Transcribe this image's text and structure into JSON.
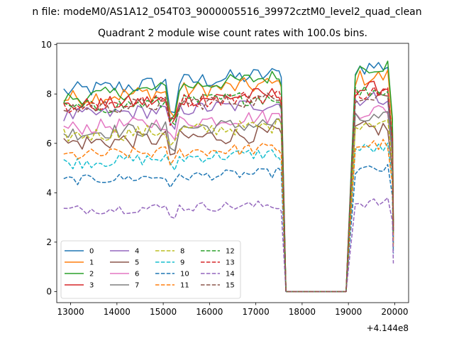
{
  "figure": {
    "suptitle": "n file: modeM0/AS1A12_054T03_9000005516_39972cztM0_level2_quad_clean"
  },
  "chart_data": {
    "type": "line",
    "title": "Quadrant 2 module wise count rates with 100.0s bins.",
    "xlabel": "",
    "ylabel": "",
    "x_offset_label": "+4.144e8",
    "xlim": [
      12700,
      20300
    ],
    "ylim": [
      -0.45,
      10.05
    ],
    "x_ticks": [
      13000,
      14000,
      15000,
      16000,
      17000,
      18000,
      19000,
      20000
    ],
    "y_ticks": [
      0,
      2,
      4,
      6,
      8,
      10
    ],
    "grid": false,
    "legend": {
      "placement": "lower-left",
      "columns": 4
    },
    "profile": {
      "active_segments": [
        [
          12850,
          17450
        ],
        [
          19150,
          19850
        ]
      ],
      "edges": [
        {
          "x": 17500,
          "kind": "level"
        },
        {
          "x": 17550,
          "kind": "frac",
          "f": 0.97
        },
        {
          "x": 17650,
          "kind": "zero"
        },
        {
          "x": 18950,
          "kind": "zero"
        },
        {
          "x": 19050,
          "kind": "frac",
          "f": 0.55
        },
        {
          "x": 19950,
          "kind": "frac",
          "f": 0.75
        },
        {
          "x": 19970,
          "kind": "frac",
          "f": 0.3
        }
      ],
      "step": 100
    },
    "series": [
      {
        "name": "0",
        "color": "#1f77b4",
        "style": "solid",
        "level": 8.1,
        "jitter": 0.35,
        "trend": 0.7,
        "dip": 1.6
      },
      {
        "name": "1",
        "color": "#ff7f0e",
        "style": "solid",
        "level": 7.8,
        "jitter": 0.35,
        "trend": 0.6,
        "dip": 1.4
      },
      {
        "name": "2",
        "color": "#2ca02c",
        "style": "solid",
        "level": 7.8,
        "jitter": 0.3,
        "trend": 0.9,
        "dip": 1.7
      },
      {
        "name": "3",
        "color": "#d62728",
        "style": "solid",
        "level": 7.5,
        "jitter": 0.3,
        "trend": 0.5,
        "dip": 1.3
      },
      {
        "name": "4",
        "color": "#9467bd",
        "style": "solid",
        "level": 7.1,
        "jitter": 0.3,
        "trend": 0.5,
        "dip": 1.2
      },
      {
        "name": "5",
        "color": "#8c564b",
        "style": "solid",
        "level": 6.0,
        "jitter": 0.35,
        "trend": 0.4,
        "dip": 0.9
      },
      {
        "name": "6",
        "color": "#e377c2",
        "style": "solid",
        "level": 6.6,
        "jitter": 0.3,
        "trend": 0.5,
        "dip": 1.0
      },
      {
        "name": "7",
        "color": "#7f7f7f",
        "style": "solid",
        "level": 6.4,
        "jitter": 0.3,
        "trend": 0.4,
        "dip": 1.0
      },
      {
        "name": "8",
        "color": "#bcbd22",
        "style": "dashed",
        "level": 6.3,
        "jitter": 0.3,
        "trend": 0.4,
        "dip": 0.8
      },
      {
        "name": "9",
        "color": "#17becf",
        "style": "dashed",
        "level": 5.2,
        "jitter": 0.25,
        "trend": 0.4,
        "dip": 0.6
      },
      {
        "name": "10",
        "color": "#1f77b4",
        "style": "dashed",
        "level": 4.5,
        "jitter": 0.2,
        "trend": 0.3,
        "dip": 0.5
      },
      {
        "name": "11",
        "color": "#ff7f0e",
        "style": "dashed",
        "level": 5.5,
        "jitter": 0.25,
        "trend": 0.3,
        "dip": 0.6
      },
      {
        "name": "12",
        "color": "#2ca02c",
        "style": "dashed",
        "level": 7.4,
        "jitter": 0.3,
        "trend": 0.5,
        "dip": 1.1
      },
      {
        "name": "13",
        "color": "#d62728",
        "style": "dashed",
        "level": 7.5,
        "jitter": 0.3,
        "trend": 0.4,
        "dip": 1.1
      },
      {
        "name": "14",
        "color": "#9467bd",
        "style": "dashed",
        "level": 3.3,
        "jitter": 0.2,
        "trend": 0.2,
        "dip": 0.4
      },
      {
        "name": "15",
        "color": "#8c564b",
        "style": "dashed",
        "level": 7.4,
        "jitter": 0.3,
        "trend": 0.4,
        "dip": 1.1
      }
    ]
  }
}
